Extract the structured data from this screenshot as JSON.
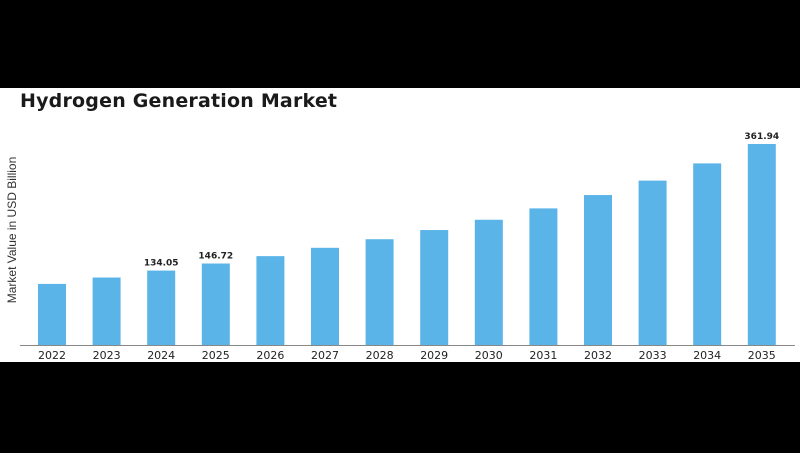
{
  "chart_data": {
    "type": "bar",
    "title": "Hydrogen Generation Market",
    "xlabel": "",
    "ylabel": "Market Value in USD Billion",
    "categories": [
      "2022",
      "2023",
      "2024",
      "2025",
      "2026",
      "2027",
      "2028",
      "2029",
      "2030",
      "2031",
      "2032",
      "2033",
      "2034",
      "2035"
    ],
    "values": [
      110.0,
      121.5,
      134.05,
      146.72,
      160.0,
      175.0,
      190.5,
      207.0,
      225.5,
      246.0,
      270.0,
      296.0,
      327.0,
      361.94
    ],
    "labels": {
      "2024": "134.05",
      "2025": "146.72",
      "2035": "361.94"
    },
    "ylim": [
      0,
      361.94
    ],
    "grid": false,
    "bar_color": "#5bb4e8",
    "axis_color": "#888888"
  }
}
